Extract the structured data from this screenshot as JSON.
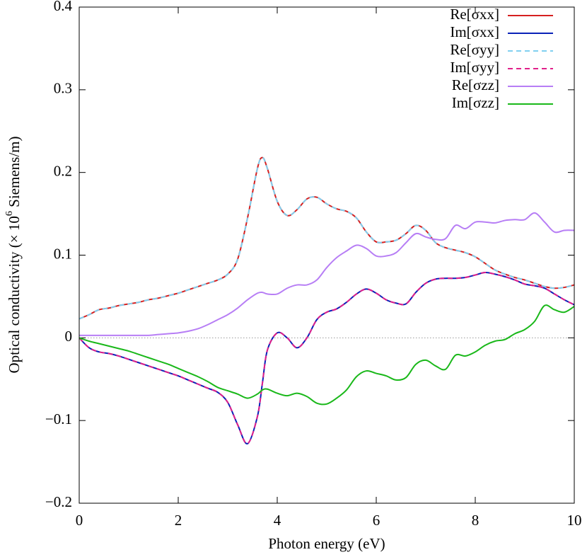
{
  "chart_data": {
    "type": "line",
    "xlabel": "Photon energy (eV)",
    "ylabel": [
      "Optical conductivity (× 10",
      "6",
      " Siemens/m)"
    ],
    "x": [
      0,
      0.2,
      0.4,
      0.6,
      0.8,
      1,
      1.2,
      1.4,
      1.6,
      1.8,
      2,
      2.2,
      2.4,
      2.6,
      2.8,
      3,
      3.2,
      3.4,
      3.6,
      3.7,
      3.8,
      4,
      4.2,
      4.4,
      4.6,
      4.8,
      5,
      5.2,
      5.4,
      5.6,
      5.8,
      6,
      6.2,
      6.4,
      6.6,
      6.8,
      7,
      7.2,
      7.4,
      7.6,
      7.8,
      8,
      8.2,
      8.4,
      8.6,
      8.8,
      9,
      9.2,
      9.4,
      9.6,
      9.8,
      10
    ],
    "xlim": [
      0,
      10
    ],
    "xticks": [
      0,
      2,
      4,
      6,
      8,
      10
    ],
    "ylim": [
      -0.2,
      0.4
    ],
    "yticks": [
      {
        "value": -0.2,
        "label": "−0.2"
      },
      {
        "value": -0.1,
        "label": "−0.1"
      },
      0,
      0.1,
      0.2,
      0.3,
      0.4
    ],
    "zero_line": true,
    "legend": "top-right",
    "series": [
      {
        "name": "Re[σxx]",
        "color": "#d62020",
        "dash": false,
        "values": [
          0.023,
          0.028,
          0.034,
          0.036,
          0.039,
          0.041,
          0.043,
          0.046,
          0.048,
          0.051,
          0.054,
          0.058,
          0.062,
          0.066,
          0.07,
          0.077,
          0.095,
          0.145,
          0.205,
          0.218,
          0.205,
          0.165,
          0.148,
          0.155,
          0.168,
          0.17,
          0.162,
          0.156,
          0.153,
          0.145,
          0.128,
          0.116,
          0.116,
          0.118,
          0.126,
          0.136,
          0.13,
          0.115,
          0.109,
          0.106,
          0.103,
          0.098,
          0.09,
          0.082,
          0.077,
          0.073,
          0.07,
          0.066,
          0.062,
          0.06,
          0.061,
          0.064
        ]
      },
      {
        "name": "Im[σxx]",
        "color": "#0a22b8",
        "dash": false,
        "values": [
          0,
          -0.012,
          -0.017,
          -0.019,
          -0.022,
          -0.026,
          -0.03,
          -0.034,
          -0.038,
          -0.042,
          -0.046,
          -0.051,
          -0.056,
          -0.061,
          -0.066,
          -0.078,
          -0.105,
          -0.128,
          -0.095,
          -0.055,
          -0.015,
          0.006,
          0.0,
          -0.012,
          0.0,
          0.022,
          0.031,
          0.035,
          0.043,
          0.053,
          0.059,
          0.054,
          0.046,
          0.042,
          0.041,
          0.055,
          0.066,
          0.071,
          0.072,
          0.072,
          0.073,
          0.076,
          0.079,
          0.077,
          0.074,
          0.07,
          0.065,
          0.063,
          0.06,
          0.053,
          0.046,
          0.04
        ]
      },
      {
        "name": "Re[σyy]",
        "color": "#80d0f0",
        "dash": true,
        "values": [
          0.023,
          0.028,
          0.034,
          0.036,
          0.039,
          0.041,
          0.043,
          0.046,
          0.048,
          0.051,
          0.054,
          0.058,
          0.062,
          0.066,
          0.07,
          0.077,
          0.095,
          0.145,
          0.205,
          0.218,
          0.205,
          0.165,
          0.148,
          0.155,
          0.168,
          0.17,
          0.162,
          0.156,
          0.153,
          0.145,
          0.128,
          0.116,
          0.116,
          0.118,
          0.126,
          0.136,
          0.13,
          0.115,
          0.109,
          0.106,
          0.103,
          0.098,
          0.09,
          0.082,
          0.077,
          0.073,
          0.07,
          0.066,
          0.062,
          0.06,
          0.061,
          0.064
        ]
      },
      {
        "name": "Im[σyy]",
        "color": "#e0208a",
        "dash": true,
        "values": [
          0,
          -0.012,
          -0.017,
          -0.019,
          -0.022,
          -0.026,
          -0.03,
          -0.034,
          -0.038,
          -0.042,
          -0.046,
          -0.051,
          -0.056,
          -0.061,
          -0.066,
          -0.078,
          -0.105,
          -0.128,
          -0.095,
          -0.055,
          -0.015,
          0.006,
          0.0,
          -0.012,
          0.0,
          0.022,
          0.031,
          0.035,
          0.043,
          0.053,
          0.059,
          0.054,
          0.046,
          0.042,
          0.041,
          0.055,
          0.066,
          0.071,
          0.072,
          0.072,
          0.073,
          0.076,
          0.079,
          0.077,
          0.074,
          0.07,
          0.065,
          0.063,
          0.06,
          0.053,
          0.046,
          0.04
        ]
      },
      {
        "name": "Re[σzz]",
        "color": "#b77ef5",
        "dash": false,
        "values": [
          0.003,
          0.003,
          0.003,
          0.003,
          0.003,
          0.003,
          0.003,
          0.003,
          0.004,
          0.005,
          0.006,
          0.008,
          0.011,
          0.016,
          0.022,
          0.028,
          0.036,
          0.046,
          0.054,
          0.055,
          0.053,
          0.053,
          0.06,
          0.064,
          0.064,
          0.07,
          0.085,
          0.097,
          0.105,
          0.112,
          0.108,
          0.099,
          0.099,
          0.103,
          0.115,
          0.126,
          0.122,
          0.119,
          0.12,
          0.136,
          0.132,
          0.14,
          0.14,
          0.139,
          0.142,
          0.143,
          0.143,
          0.151,
          0.14,
          0.128,
          0.13,
          0.13
        ]
      },
      {
        "name": "Im[σzz]",
        "color": "#1ab81a",
        "dash": false,
        "values": [
          0,
          -0.004,
          -0.007,
          -0.01,
          -0.013,
          -0.016,
          -0.02,
          -0.024,
          -0.028,
          -0.032,
          -0.037,
          -0.042,
          -0.047,
          -0.053,
          -0.06,
          -0.064,
          -0.068,
          -0.073,
          -0.068,
          -0.063,
          -0.062,
          -0.067,
          -0.07,
          -0.067,
          -0.071,
          -0.079,
          -0.08,
          -0.073,
          -0.063,
          -0.047,
          -0.04,
          -0.043,
          -0.046,
          -0.051,
          -0.048,
          -0.032,
          -0.027,
          -0.034,
          -0.038,
          -0.021,
          -0.022,
          -0.017,
          -0.009,
          -0.004,
          -0.002,
          0.005,
          0.01,
          0.02,
          0.039,
          0.034,
          0.031,
          0.038
        ]
      }
    ]
  }
}
